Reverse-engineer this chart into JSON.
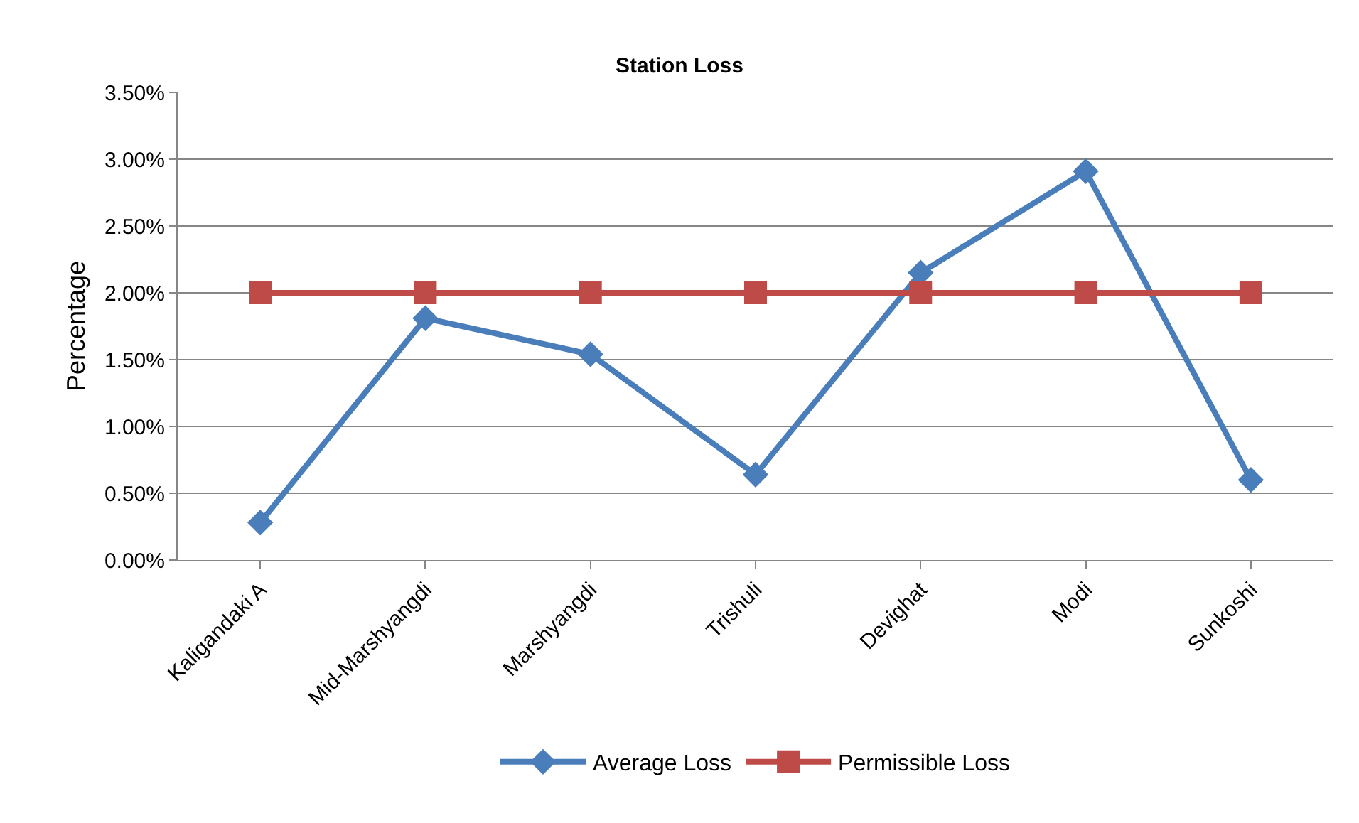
{
  "chart_data": {
    "type": "line",
    "title": "Station Loss",
    "ylabel": "Percentage",
    "categories": [
      "Kaligandaki A",
      "Mid-Marshyangdi",
      "Marshyangdi",
      "Trishuli",
      "Devighat",
      "Modi",
      "Sunkoshi"
    ],
    "series": [
      {
        "name": "Average Loss",
        "color": "#4a7ebb",
        "marker": "diamond",
        "values": [
          0.28,
          1.81,
          1.54,
          0.64,
          2.15,
          2.91,
          0.6
        ]
      },
      {
        "name": "Permissible Loss",
        "color": "#be4b48",
        "marker": "square",
        "values": [
          2,
          2,
          2,
          2,
          2,
          2,
          2
        ]
      }
    ],
    "ylim": [
      0,
      3.5
    ],
    "yticks": [
      {
        "value": 0,
        "label": "0.00%"
      },
      {
        "value": 0.5,
        "label": "0.50%"
      },
      {
        "value": 1,
        "label": "1.00%"
      },
      {
        "value": 1.5,
        "label": "1.50%"
      },
      {
        "value": 2,
        "label": "2.00%"
      },
      {
        "value": 2.5,
        "label": "2.50%"
      },
      {
        "value": 3,
        "label": "3.00%"
      },
      {
        "value": 3.5,
        "label": "3.50%"
      }
    ],
    "grid": "y",
    "legend": "bottom",
    "line_style": "solid"
  }
}
